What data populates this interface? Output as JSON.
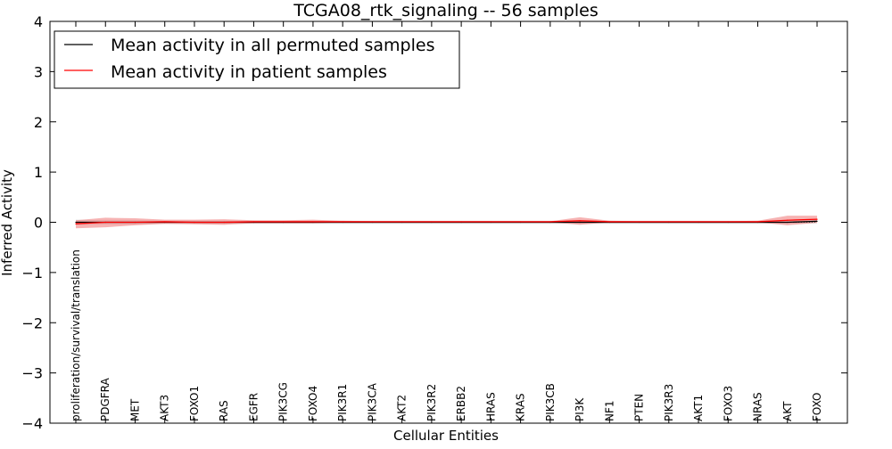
{
  "chart_data": {
    "type": "line",
    "title": "TCGA08_rtk_signaling -- 56 samples",
    "xlabel": "Cellular Entities",
    "ylabel": "Inferred Activity",
    "ylim": [
      -4,
      4
    ],
    "y_ticks": [
      4,
      3,
      2,
      1,
      0,
      -1,
      -2,
      -3,
      -4
    ],
    "y_tick_labels": [
      "4",
      "3",
      "2",
      "1",
      "0",
      "−1",
      "−2",
      "−3",
      "−4"
    ],
    "legend_position": "top-left",
    "categories": [
      "proliferation/survival/translation",
      "PDGFRA",
      "MET",
      "AKT3",
      "FOXO1",
      "RAS",
      "EGFR",
      "PIK3CG",
      "FOXO4",
      "PIK3R1",
      "PIK3CA",
      "AKT2",
      "PIK3R2",
      "ERBB2",
      "HRAS",
      "KRAS",
      "PIK3CB",
      "PI3K",
      "NF1",
      "PTEN",
      "PIK3R3",
      "AKT1",
      "FOXO3",
      "NRAS",
      "AKT",
      "FOXO"
    ],
    "series": [
      {
        "name": "Mean activity in all permuted samples",
        "color": "#000000",
        "band_color": "#bbbbbb",
        "values": [
          0.0,
          0.0,
          0.0,
          0.0,
          0.0,
          0.0,
          0.0,
          0.0,
          0.0,
          0.0,
          0.0,
          0.0,
          0.0,
          0.0,
          0.0,
          0.0,
          0.0,
          0.0,
          0.0,
          0.0,
          0.0,
          0.0,
          0.0,
          0.0,
          0.0,
          0.02
        ],
        "band_low": [
          -0.05,
          -0.04,
          -0.04,
          -0.03,
          -0.03,
          -0.03,
          -0.03,
          -0.03,
          -0.03,
          -0.03,
          -0.03,
          -0.03,
          -0.03,
          -0.03,
          -0.03,
          -0.03,
          -0.03,
          -0.03,
          -0.03,
          -0.03,
          -0.03,
          -0.03,
          -0.03,
          -0.03,
          -0.03,
          -0.02
        ],
        "band_high": [
          0.05,
          0.04,
          0.04,
          0.03,
          0.03,
          0.03,
          0.03,
          0.03,
          0.03,
          0.03,
          0.03,
          0.03,
          0.03,
          0.03,
          0.03,
          0.03,
          0.03,
          0.03,
          0.03,
          0.03,
          0.03,
          0.03,
          0.03,
          0.03,
          0.03,
          0.05
        ]
      },
      {
        "name": "Mean activity in patient samples",
        "color": "#ff0000",
        "band_color": "#f08080",
        "values": [
          -0.03,
          0.0,
          0.0,
          0.01,
          0.0,
          0.0,
          0.01,
          0.01,
          0.01,
          0.01,
          0.01,
          0.01,
          0.01,
          0.01,
          0.01,
          0.01,
          0.01,
          0.03,
          0.01,
          0.01,
          0.01,
          0.01,
          0.01,
          0.01,
          0.04,
          0.06
        ],
        "band_low": [
          -0.12,
          -0.1,
          -0.06,
          -0.03,
          -0.04,
          -0.05,
          -0.02,
          -0.02,
          -0.02,
          0.0,
          0.0,
          0.0,
          0.0,
          0.0,
          0.0,
          0.0,
          0.0,
          -0.05,
          0.0,
          0.0,
          0.0,
          0.0,
          0.0,
          0.0,
          -0.06,
          -0.01
        ],
        "band_high": [
          0.04,
          0.09,
          0.08,
          0.05,
          0.05,
          0.06,
          0.04,
          0.04,
          0.05,
          0.03,
          0.02,
          0.02,
          0.02,
          0.02,
          0.02,
          0.02,
          0.02,
          0.1,
          0.03,
          0.02,
          0.02,
          0.02,
          0.02,
          0.03,
          0.13,
          0.13
        ]
      }
    ]
  }
}
